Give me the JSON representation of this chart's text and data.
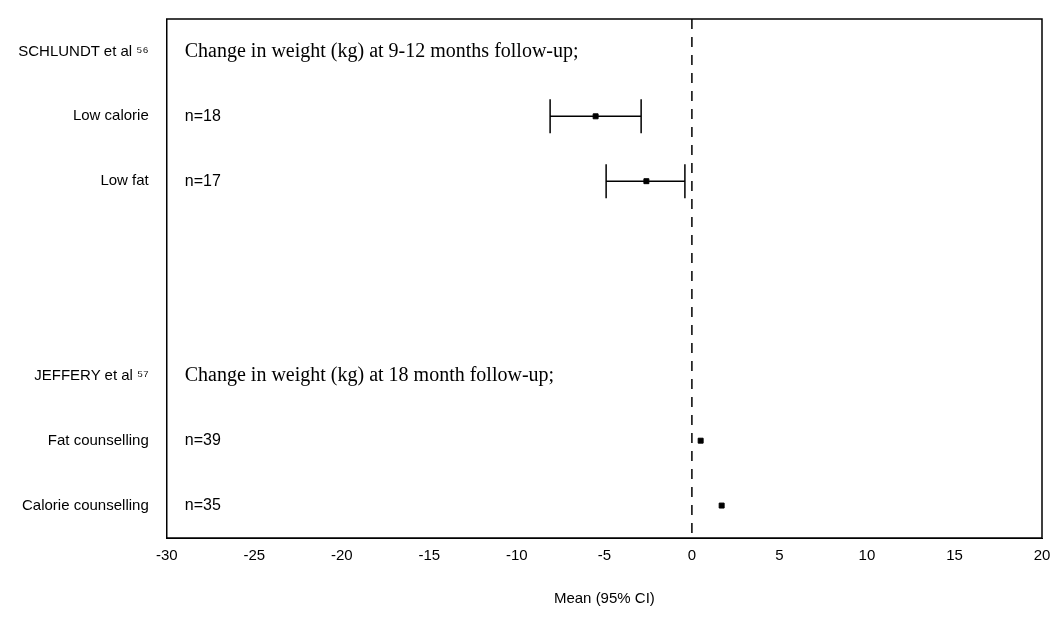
{
  "chart_data": {
    "type": "scatter",
    "orientation": "horizontal",
    "categories": [
      "SCHLUNDT et al ⁵⁶",
      "Low calorie",
      "Low fat",
      null,
      null,
      "JEFFERY et al ⁵⁷",
      "Fat counselling",
      "Calorie counselling"
    ],
    "values": [
      null,
      -5.5,
      -2.6,
      null,
      null,
      null,
      0.5,
      1.7
    ],
    "errors": [
      null,
      [
        -8.1,
        -2.9
      ],
      [
        -4.9,
        -0.4
      ],
      null,
      null,
      null,
      null,
      null
    ],
    "color": "#000000",
    "marker": "square",
    "grid": false,
    "xlim": [
      -30,
      20
    ],
    "xticks": [
      -30,
      -25,
      -20,
      -15,
      -10,
      -5,
      0,
      5,
      10,
      15,
      20
    ],
    "xlabel": "Mean (95% CI)",
    "ref_lines": [
      {
        "axis": "x",
        "value": 0,
        "line_style": "dashed",
        "color": "#000000"
      }
    ],
    "annotations": [
      "Change in weight (kg) at 9-12 months follow-up;",
      "n=18",
      "n=17",
      "Change in weight (kg) at 18 month follow-up;",
      "n=39",
      "n=35"
    ]
  }
}
